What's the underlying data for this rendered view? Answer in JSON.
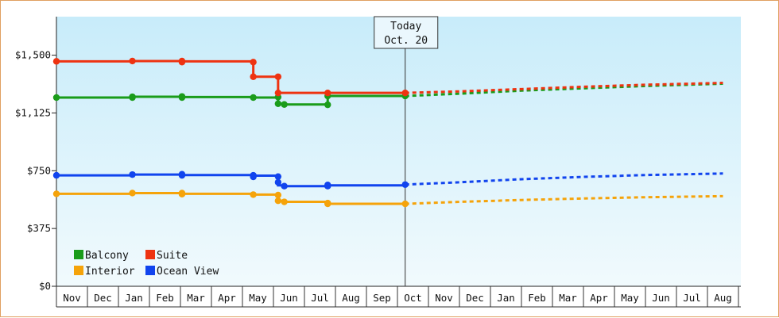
{
  "chart_data": {
    "type": "line",
    "y_tick_labels": [
      "$0",
      "$375",
      "$750",
      "$1,125",
      "$1,500"
    ],
    "y_ticks": [
      0,
      375,
      750,
      1125,
      1500
    ],
    "ylim": [
      0,
      1750
    ],
    "x_month_labels": [
      "Nov",
      "Dec",
      "Jan",
      "Feb",
      "Mar",
      "Apr",
      "May",
      "Jun",
      "Jul",
      "Aug",
      "Sep",
      "Oct",
      "Nov",
      "Dec",
      "Jan",
      "Feb",
      "Mar",
      "Apr",
      "May",
      "Jun",
      "Jul",
      "Aug"
    ],
    "today": {
      "line1": "Today",
      "line2": "Oct. 20",
      "x": 11.25
    },
    "legend_position": "bottom-left",
    "series": [
      {
        "name": "Balcony",
        "color": "#1a9c1a",
        "history": [
          [
            0,
            1225
          ],
          [
            2.45,
            1230
          ],
          [
            4.05,
            1228
          ],
          [
            6.35,
            1225
          ],
          [
            7.15,
            1228
          ],
          [
            7.15,
            1185
          ],
          [
            7.35,
            1180
          ],
          [
            8.75,
            1178
          ],
          [
            8.75,
            1235
          ],
          [
            11.25,
            1235
          ]
        ],
        "markers": [
          [
            0,
            1225
          ],
          [
            2.45,
            1230
          ],
          [
            2.45,
            1225
          ],
          [
            4.05,
            1232
          ],
          [
            4.05,
            1225
          ],
          [
            6.35,
            1225
          ],
          [
            7.15,
            1228
          ],
          [
            7.15,
            1185
          ],
          [
            7.35,
            1180
          ],
          [
            8.75,
            1178
          ],
          [
            8.75,
            1235
          ],
          [
            11.25,
            1235
          ]
        ],
        "forecast": [
          [
            11.25,
            1235
          ],
          [
            13,
            1250
          ],
          [
            15,
            1270
          ],
          [
            17,
            1285
          ],
          [
            19,
            1300
          ],
          [
            21.5,
            1315
          ]
        ]
      },
      {
        "name": "Suite",
        "color": "#ee3311",
        "history": [
          [
            0,
            1460
          ],
          [
            2.45,
            1462
          ],
          [
            4.05,
            1460
          ],
          [
            6.35,
            1455
          ],
          [
            6.35,
            1360
          ],
          [
            7.15,
            1360
          ],
          [
            7.15,
            1255
          ],
          [
            11.25,
            1255
          ]
        ],
        "markers": [
          [
            0,
            1460
          ],
          [
            2.45,
            1462
          ],
          [
            4.05,
            1462
          ],
          [
            4.05,
            1455
          ],
          [
            6.35,
            1455
          ],
          [
            6.35,
            1360
          ],
          [
            7.15,
            1360
          ],
          [
            7.15,
            1255
          ],
          [
            8.75,
            1255
          ],
          [
            11.25,
            1255
          ]
        ],
        "forecast": [
          [
            11.25,
            1255
          ],
          [
            13,
            1265
          ],
          [
            15,
            1280
          ],
          [
            17,
            1295
          ],
          [
            19,
            1308
          ],
          [
            21.5,
            1320
          ]
        ]
      },
      {
        "name": "Interior",
        "color": "#f5a30a",
        "history": [
          [
            0,
            600
          ],
          [
            2.45,
            605
          ],
          [
            4.05,
            600
          ],
          [
            6.35,
            595
          ],
          [
            7.15,
            592
          ],
          [
            7.15,
            555
          ],
          [
            7.35,
            548
          ],
          [
            8.75,
            540
          ],
          [
            8.75,
            535
          ],
          [
            11.25,
            535
          ]
        ],
        "markers": [
          [
            0,
            600
          ],
          [
            2.45,
            605
          ],
          [
            4.05,
            605
          ],
          [
            4.05,
            598
          ],
          [
            6.35,
            595
          ],
          [
            7.15,
            592
          ],
          [
            7.15,
            555
          ],
          [
            7.35,
            548
          ],
          [
            8.75,
            540
          ],
          [
            8.75,
            535
          ],
          [
            11.25,
            535
          ]
        ],
        "forecast": [
          [
            11.25,
            535
          ],
          [
            13,
            548
          ],
          [
            15,
            560
          ],
          [
            17,
            570
          ],
          [
            19,
            578
          ],
          [
            21.5,
            585
          ]
        ]
      },
      {
        "name": "Ocean View",
        "color": "#1144ee",
        "history": [
          [
            0,
            720
          ],
          [
            2.45,
            725
          ],
          [
            4.05,
            722
          ],
          [
            6.35,
            718
          ],
          [
            7.15,
            712
          ],
          [
            7.15,
            655
          ],
          [
            7.35,
            650
          ],
          [
            8.75,
            650
          ],
          [
            8.75,
            655
          ],
          [
            11.25,
            660
          ]
        ],
        "markers": [
          [
            0,
            720
          ],
          [
            2.45,
            725
          ],
          [
            4.05,
            727
          ],
          [
            4.05,
            720
          ],
          [
            6.35,
            720
          ],
          [
            6.35,
            710
          ],
          [
            7.15,
            712
          ],
          [
            7.15,
            675
          ],
          [
            7.35,
            650
          ],
          [
            8.75,
            650
          ],
          [
            8.75,
            658
          ],
          [
            11.25,
            660
          ]
        ],
        "forecast": [
          [
            11.25,
            660
          ],
          [
            13,
            675
          ],
          [
            15,
            695
          ],
          [
            17,
            710
          ],
          [
            19,
            722
          ],
          [
            21.5,
            732
          ]
        ]
      }
    ]
  }
}
